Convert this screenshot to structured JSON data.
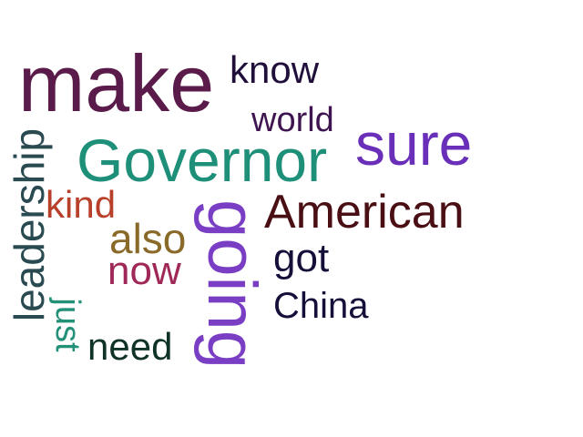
{
  "words": {
    "make": {
      "text": "make",
      "color": "#5a1a4a"
    },
    "know": {
      "text": "know",
      "color": "#1f0f3a"
    },
    "world": {
      "text": "world",
      "color": "#3f1550"
    },
    "sure": {
      "text": "sure",
      "color": "#6a2fb8"
    },
    "governor": {
      "text": "Governor",
      "color": "#1e8f78"
    },
    "american": {
      "text": "American",
      "color": "#4a0f14"
    },
    "kind": {
      "text": "kind",
      "color": "#b8402a"
    },
    "also": {
      "text": "also",
      "color": "#8a6a28"
    },
    "now": {
      "text": "now",
      "color": "#a02858"
    },
    "got": {
      "text": "got",
      "color": "#14103a"
    },
    "china": {
      "text": "China",
      "color": "#14103a"
    },
    "need": {
      "text": "need",
      "color": "#0f3328"
    },
    "going": {
      "text": "going",
      "color": "#7a3ec4"
    },
    "leadership": {
      "text": "leadership",
      "color": "#2a4a52"
    },
    "just": {
      "text": "just",
      "color": "#239078"
    }
  }
}
